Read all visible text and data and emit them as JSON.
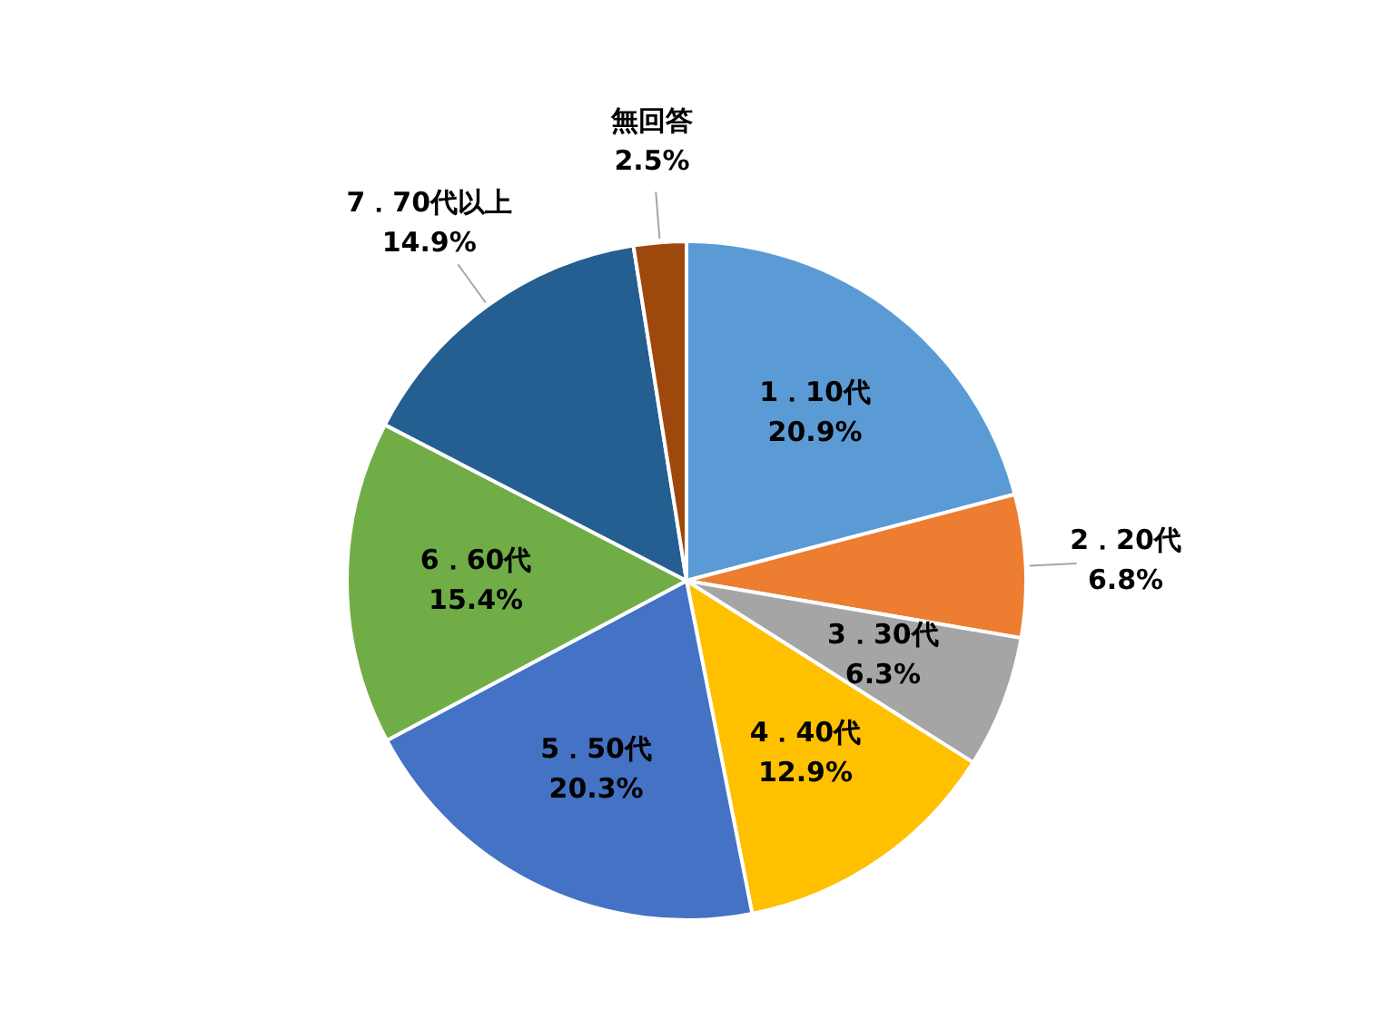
{
  "chart_data": {
    "type": "pie",
    "categories": [
      "1．10代",
      "2．20代",
      "3．30代",
      "4．40代",
      "5．50代",
      "6．60代",
      "7．70代以上",
      "無回答"
    ],
    "values": [
      20.9,
      6.8,
      6.3,
      12.9,
      20.3,
      15.4,
      14.9,
      2.5
    ],
    "value_labels": [
      "20.9%",
      "6.8%",
      "6.3%",
      "12.9%",
      "20.3%",
      "15.4%",
      "14.9%",
      "2.5%"
    ],
    "colors": [
      "#5b9bd5",
      "#ed7d31",
      "#a5a5a5",
      "#ffc000",
      "#4472c4",
      "#70ad47",
      "#255e91",
      "#9e480e"
    ],
    "legend": false
  }
}
